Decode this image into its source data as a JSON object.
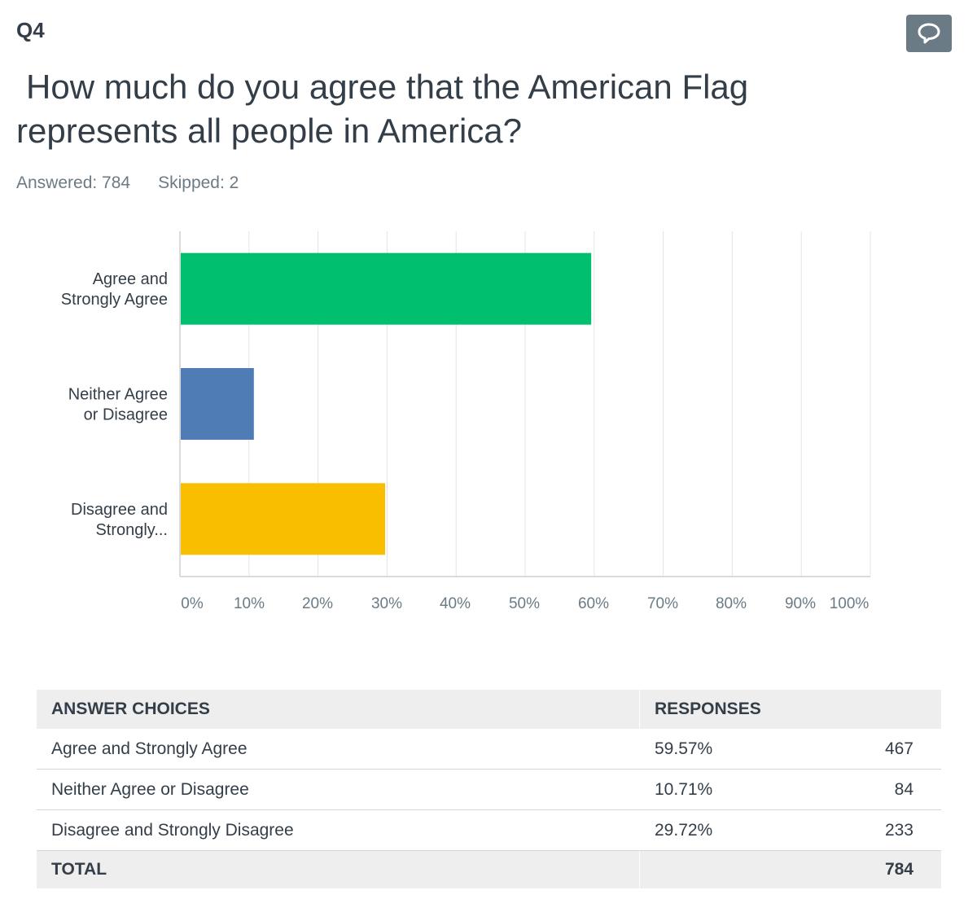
{
  "question": {
    "number": "Q4",
    "title": "How much do you agree that the American Flag represents all people in America?",
    "answered_label": "Answered: 784",
    "skipped_label": "Skipped: 2"
  },
  "colors": {
    "bars": [
      "#00bf6f",
      "#507cb6",
      "#f9be00"
    ]
  },
  "chart_data": {
    "type": "bar",
    "orientation": "horizontal",
    "categories": [
      [
        "Agree and",
        "Strongly Agree"
      ],
      [
        "Neither Agree",
        "or Disagree"
      ],
      [
        "Disagree and",
        "Strongly..."
      ]
    ],
    "values": [
      59.57,
      10.71,
      29.72
    ],
    "xlim": [
      0,
      100
    ],
    "x_ticks": [
      "0%",
      "10%",
      "20%",
      "30%",
      "40%",
      "50%",
      "60%",
      "70%",
      "80%",
      "90%",
      "100%"
    ],
    "grid": true
  },
  "table": {
    "headers": [
      "ANSWER CHOICES",
      "RESPONSES"
    ],
    "rows": [
      {
        "choice": "Agree and Strongly Agree",
        "pct": "59.57%",
        "count": "467"
      },
      {
        "choice": "Neither Agree or Disagree",
        "pct": "10.71%",
        "count": "84"
      },
      {
        "choice": "Disagree and Strongly Disagree",
        "pct": "29.72%",
        "count": "233"
      }
    ],
    "total_label": "TOTAL",
    "total_count": "784"
  },
  "icons": {
    "comment_button": "speech-bubble-icon"
  }
}
